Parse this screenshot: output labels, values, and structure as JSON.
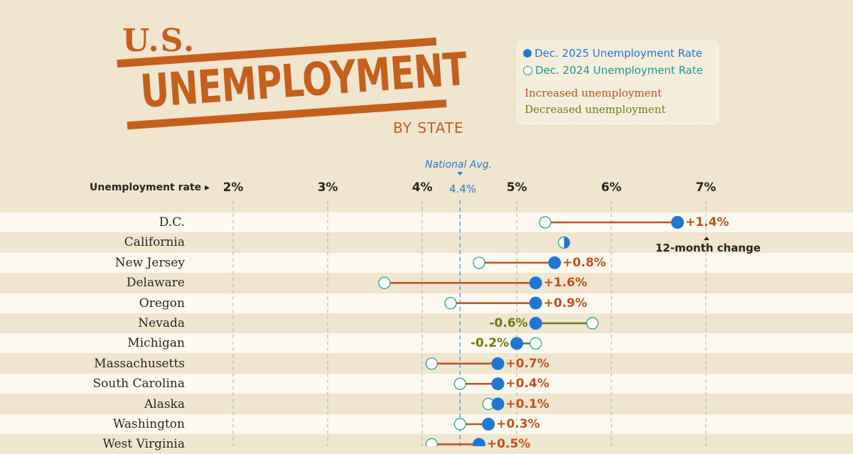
{
  "title": {
    "line1": "U.S.",
    "line2": "UNEMPLOYMENT",
    "line3": "BY STATE"
  },
  "legend": {
    "dec2025": "Dec. 2025 Unemployment Rate",
    "dec2024": "Dec. 2024 Unemployment Rate",
    "increased": "Increased unemployment",
    "decreased": "Decreased unemployment"
  },
  "annotations": {
    "national_label": "National Avg.",
    "national_value_label": "4.4%",
    "change_note": "12-month change",
    "axis_label": "Unemployment rate"
  },
  "colors": {
    "dec2025": "#1f77d4",
    "dec2024": "#1a9a8a",
    "increase": "#c4501c",
    "decrease": "#6f7a12",
    "background": "#f0e5cf"
  },
  "chart_data": {
    "type": "dumbbell",
    "xlabel": "Unemployment rate",
    "xlim": [
      2,
      7
    ],
    "ticks": [
      2,
      3,
      4,
      5,
      6,
      7
    ],
    "tick_labels": [
      "2%",
      "3%",
      "4%",
      "5%",
      "6%",
      "7%"
    ],
    "national_avg": 4.4,
    "series": [
      {
        "name": "Dec. 2025 Unemployment Rate"
      },
      {
        "name": "Dec. 2024 Unemployment Rate"
      }
    ],
    "rows": [
      {
        "state": "D.C.",
        "dec2025": 6.7,
        "dec2024": 5.3,
        "change": "+1.4%"
      },
      {
        "state": "California",
        "dec2025": 5.5,
        "dec2024": 5.5,
        "change": ""
      },
      {
        "state": "New Jersey",
        "dec2025": 5.4,
        "dec2024": 4.6,
        "change": "+0.8%"
      },
      {
        "state": "Delaware",
        "dec2025": 5.2,
        "dec2024": 3.6,
        "change": "+1.6%"
      },
      {
        "state": "Oregon",
        "dec2025": 5.2,
        "dec2024": 4.3,
        "change": "+0.9%"
      },
      {
        "state": "Nevada",
        "dec2025": 5.2,
        "dec2024": 5.8,
        "change": "-0.6%"
      },
      {
        "state": "Michigan",
        "dec2025": 5.0,
        "dec2024": 5.2,
        "change": "-0.2%"
      },
      {
        "state": "Massachusetts",
        "dec2025": 4.8,
        "dec2024": 4.1,
        "change": "+0.7%"
      },
      {
        "state": "South Carolina",
        "dec2025": 4.8,
        "dec2024": 4.4,
        "change": "+0.4%"
      },
      {
        "state": "Alaska",
        "dec2025": 4.8,
        "dec2024": 4.7,
        "change": "+0.1%"
      },
      {
        "state": "Washington",
        "dec2025": 4.7,
        "dec2024": 4.4,
        "change": "+0.3%"
      },
      {
        "state": "West Virginia",
        "dec2025": 4.6,
        "dec2024": 4.1,
        "change": "+0.5%"
      }
    ]
  }
}
